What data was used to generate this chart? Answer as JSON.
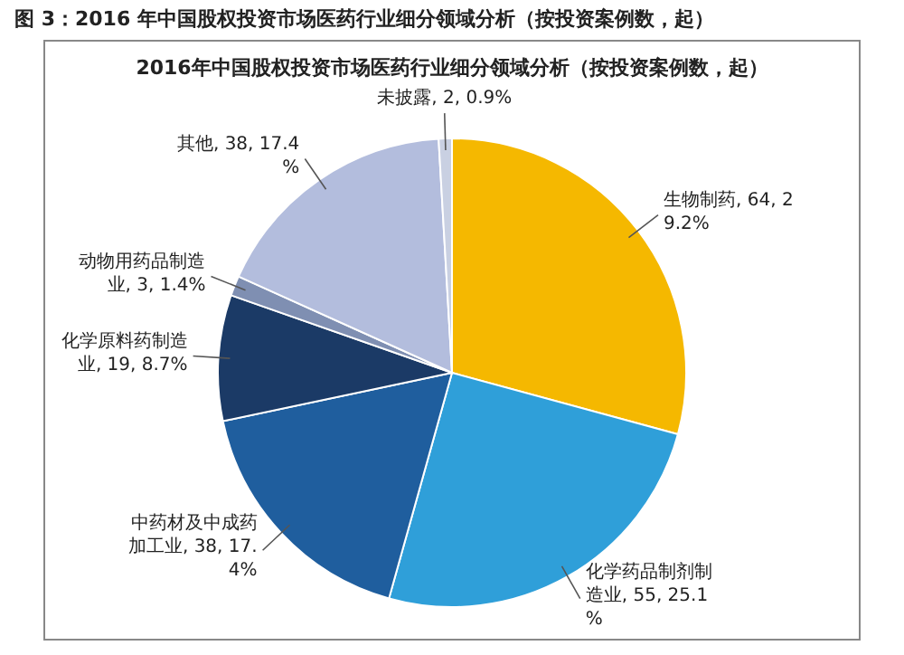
{
  "chart_data": {
    "type": "pie",
    "title": "图 3：2016 年中国股权投资市场医药行业细分领域分析（按投资案例数，起）",
    "subtitle": "2016年中国股权投资市场医药行业细分领域分析（按投资案例数，起）",
    "categories": [
      "生物制药",
      "化学药品制剂制造业",
      "中药材及中成药加工业",
      "化学原料药制造业",
      "动物用药品制造业",
      "其他",
      "未披露"
    ],
    "values": [
      64,
      55,
      38,
      19,
      3,
      38,
      2
    ],
    "colors": [
      "#f5b800",
      "#2f9fd9",
      "#1f5e9e",
      "#1b3a66",
      "#7f8fb2",
      "#b3bddd",
      "#c9d0e2"
    ],
    "value_labels": [
      ", 64, 29.2%",
      ", 55, 25.1%",
      ", 38, 17.4%",
      ", 19, 8.7%",
      ", 3, 1.4%",
      ", 38, 17.4%",
      ", 2, 0.9%"
    ],
    "legend": false
  }
}
